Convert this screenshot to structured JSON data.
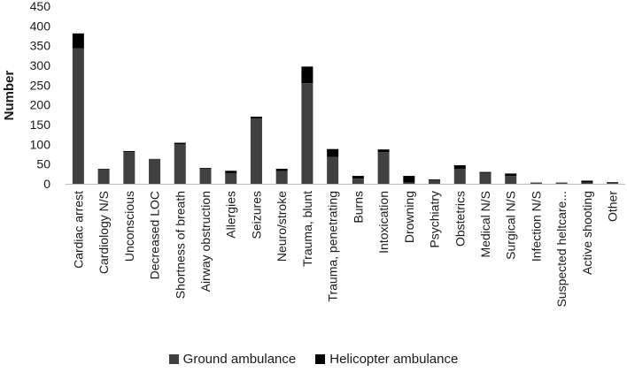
{
  "chart_data": {
    "type": "bar",
    "stacked": true,
    "ylabel": "Number",
    "xlabel": "",
    "ylim": [
      0,
      450
    ],
    "yticks": [
      0,
      50,
      100,
      150,
      200,
      250,
      300,
      350,
      400,
      450
    ],
    "grid": false,
    "legend_position": "bottom",
    "categories": [
      "Cardiac arrest",
      "Cardiology N/S",
      "Unconscious",
      "Decreased LOC",
      "Shortness of breath",
      "Airway obstruction",
      "Allergies",
      "Seizures",
      "Neuro/stroke",
      "Trauma, blunt",
      "Trauma, penetrating",
      "Burns",
      "Intoxication",
      "Drowning",
      "Psychiatry",
      "Obstetrics",
      "Medical N/S",
      "Surgical N/S",
      "Infection N/S",
      "Suspected heltcare...",
      "Active shooting",
      "Other"
    ],
    "series": [
      {
        "name": "Ground ambulance",
        "color": "#404040",
        "values": [
          343,
          37,
          80,
          62,
          100,
          38,
          27,
          165,
          32,
          255,
          68,
          13,
          80,
          3,
          9,
          38,
          28,
          20,
          2,
          2,
          3,
          2
        ]
      },
      {
        "name": "Helicopter ambulance",
        "color": "#000000",
        "values": [
          38,
          1,
          3,
          1,
          4,
          2,
          6,
          5,
          6,
          42,
          20,
          7,
          7,
          17,
          2,
          9,
          2,
          6,
          1,
          1,
          5,
          2
        ]
      }
    ]
  }
}
